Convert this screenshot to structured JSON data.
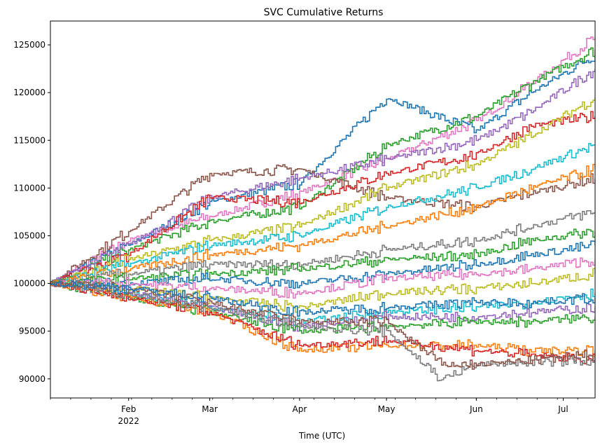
{
  "chart_data": {
    "type": "line",
    "title": "SVC Cumulative Returns",
    "xlabel": "Time (UTC)",
    "ylabel": "",
    "xlim": [
      "2022-01-05",
      "2022-07-12"
    ],
    "ylim": [
      88000,
      127500
    ],
    "x_ticks": [
      {
        "date": "2022-02-01",
        "label": "Feb",
        "sublabel": "2022"
      },
      {
        "date": "2022-03-01",
        "label": "Mar",
        "sublabel": ""
      },
      {
        "date": "2022-04-01",
        "label": "Apr",
        "sublabel": ""
      },
      {
        "date": "2022-05-01",
        "label": "May",
        "sublabel": ""
      },
      {
        "date": "2022-06-01",
        "label": "Jun",
        "sublabel": ""
      },
      {
        "date": "2022-07-01",
        "label": "Jul",
        "sublabel": ""
      }
    ],
    "y_ticks": [
      90000,
      95000,
      100000,
      105000,
      110000,
      115000,
      120000,
      125000
    ],
    "y_tick_labels": [
      "90000",
      "95000",
      "100000",
      "105000",
      "110000",
      "115000",
      "120000",
      "125000"
    ],
    "grid": false,
    "legend": "none",
    "palette": [
      "#1f77b4",
      "#ff7f0e",
      "#2ca02c",
      "#d62728",
      "#9467bd",
      "#8c564b",
      "#e377c2",
      "#7f7f7f",
      "#bcbd22",
      "#17becf"
    ],
    "series": [
      {
        "color": "#e377c2",
        "x": [
          "2022-01-05",
          "2022-02-01",
          "2022-03-01",
          "2022-04-01",
          "2022-05-01",
          "2022-06-01",
          "2022-06-20",
          "2022-07-12"
        ],
        "y": [
          100000,
          104500,
          107000,
          109500,
          113000,
          117000,
          121000,
          125800
        ]
      },
      {
        "color": "#1f77b4",
        "x": [
          "2022-01-05",
          "2022-02-01",
          "2022-03-01",
          "2022-04-01",
          "2022-05-01",
          "2022-06-01",
          "2022-06-20",
          "2022-07-12"
        ],
        "y": [
          100000,
          104000,
          108500,
          110500,
          119500,
          116000,
          120000,
          124000
        ]
      },
      {
        "color": "#2ca02c",
        "x": [
          "2022-01-05",
          "2022-02-01",
          "2022-03-01",
          "2022-04-01",
          "2022-05-01",
          "2022-06-01",
          "2022-06-20",
          "2022-07-12"
        ],
        "y": [
          100000,
          103500,
          106500,
          108000,
          114500,
          117500,
          121000,
          124500
        ]
      },
      {
        "color": "#8c564b",
        "x": [
          "2022-01-05",
          "2022-02-01",
          "2022-03-01",
          "2022-04-01",
          "2022-05-01",
          "2022-06-01",
          "2022-06-20",
          "2022-07-12"
        ],
        "y": [
          100000,
          105500,
          111500,
          112000,
          109000,
          108000,
          109500,
          111000
        ]
      },
      {
        "color": "#9467bd",
        "x": [
          "2022-01-05",
          "2022-02-01",
          "2022-03-01",
          "2022-04-01",
          "2022-05-01",
          "2022-06-01",
          "2022-06-20",
          "2022-07-12"
        ],
        "y": [
          100000,
          104000,
          109000,
          111000,
          113000,
          115000,
          118000,
          122500
        ]
      },
      {
        "color": "#d62728",
        "x": [
          "2022-01-05",
          "2022-02-01",
          "2022-03-01",
          "2022-04-01",
          "2022-05-01",
          "2022-06-01",
          "2022-06-20",
          "2022-07-12"
        ],
        "y": [
          100000,
          103000,
          109000,
          108500,
          111500,
          113500,
          116500,
          117500
        ]
      },
      {
        "color": "#bcbd22",
        "x": [
          "2022-01-05",
          "2022-02-01",
          "2022-03-01",
          "2022-04-01",
          "2022-05-01",
          "2022-06-01",
          "2022-06-20",
          "2022-07-12"
        ],
        "y": [
          100000,
          102500,
          104500,
          106000,
          110000,
          112500,
          115500,
          119500
        ]
      },
      {
        "color": "#17becf",
        "x": [
          "2022-01-05",
          "2022-02-01",
          "2022-03-01",
          "2022-04-01",
          "2022-05-01",
          "2022-06-01",
          "2022-06-20",
          "2022-07-12"
        ],
        "y": [
          100000,
          102000,
          104000,
          105000,
          108000,
          110000,
          112000,
          114500
        ]
      },
      {
        "color": "#ff7f0e",
        "x": [
          "2022-01-05",
          "2022-02-01",
          "2022-03-01",
          "2022-04-01",
          "2022-05-01",
          "2022-06-01",
          "2022-06-20",
          "2022-07-12"
        ],
        "y": [
          100000,
          101500,
          103000,
          104000,
          106000,
          108000,
          110000,
          112000
        ]
      },
      {
        "color": "#7f7f7f",
        "x": [
          "2022-01-05",
          "2022-02-01",
          "2022-03-01",
          "2022-04-01",
          "2022-05-01",
          "2022-06-01",
          "2022-06-20",
          "2022-07-12"
        ],
        "y": [
          100000,
          101000,
          102000,
          102000,
          103500,
          104500,
          106000,
          107500
        ]
      },
      {
        "color": "#2ca02c",
        "x": [
          "2022-01-05",
          "2022-02-01",
          "2022-03-01",
          "2022-04-01",
          "2022-05-01",
          "2022-06-01",
          "2022-06-20",
          "2022-07-12"
        ],
        "y": [
          100000,
          100500,
          101000,
          101500,
          102500,
          103000,
          104500,
          105500
        ]
      },
      {
        "color": "#1f77b4",
        "x": [
          "2022-01-05",
          "2022-02-01",
          "2022-03-01",
          "2022-04-01",
          "2022-05-01",
          "2022-06-01",
          "2022-06-20",
          "2022-07-12"
        ],
        "y": [
          100000,
          100000,
          100500,
          100000,
          101000,
          102000,
          103000,
          104000
        ]
      },
      {
        "color": "#e377c2",
        "x": [
          "2022-01-05",
          "2022-02-01",
          "2022-03-01",
          "2022-04-01",
          "2022-05-01",
          "2022-06-01",
          "2022-06-20",
          "2022-07-12"
        ],
        "y": [
          100000,
          100000,
          99500,
          99000,
          100500,
          101000,
          101500,
          102500
        ]
      },
      {
        "color": "#bcbd22",
        "x": [
          "2022-01-05",
          "2022-02-01",
          "2022-03-01",
          "2022-04-01",
          "2022-05-01",
          "2022-06-01",
          "2022-06-20",
          "2022-07-12"
        ],
        "y": [
          100000,
          99500,
          98500,
          97500,
          99000,
          99500,
          100000,
          101000
        ]
      },
      {
        "color": "#17becf",
        "x": [
          "2022-01-05",
          "2022-02-01",
          "2022-03-01",
          "2022-04-01",
          "2022-05-01",
          "2022-06-01",
          "2022-06-20",
          "2022-07-12"
        ],
        "y": [
          100000,
          99000,
          97500,
          96000,
          97000,
          97500,
          98000,
          99000
        ]
      },
      {
        "color": "#9467bd",
        "x": [
          "2022-01-05",
          "2022-02-01",
          "2022-03-01",
          "2022-04-01",
          "2022-05-01",
          "2022-06-01",
          "2022-06-20",
          "2022-07-12"
        ],
        "y": [
          100000,
          99000,
          97500,
          95500,
          96500,
          96500,
          97000,
          97500
        ]
      },
      {
        "color": "#2ca02c",
        "x": [
          "2022-01-05",
          "2022-02-01",
          "2022-03-01",
          "2022-04-01",
          "2022-05-01",
          "2022-06-01",
          "2022-06-20",
          "2022-07-12"
        ],
        "y": [
          100000,
          98500,
          97000,
          95000,
          95500,
          96000,
          96000,
          96500
        ]
      },
      {
        "color": "#ff7f0e",
        "x": [
          "2022-01-05",
          "2022-02-01",
          "2022-03-01",
          "2022-04-01",
          "2022-05-01",
          "2022-06-01",
          "2022-06-20",
          "2022-07-12"
        ],
        "y": [
          100000,
          98500,
          97000,
          93000,
          93500,
          93500,
          93000,
          93000
        ]
      },
      {
        "color": "#d62728",
        "x": [
          "2022-01-05",
          "2022-02-01",
          "2022-03-01",
          "2022-04-01",
          "2022-05-01",
          "2022-06-01",
          "2022-06-20",
          "2022-07-12"
        ],
        "y": [
          100000,
          98500,
          97000,
          93500,
          94000,
          93000,
          92500,
          92000
        ]
      },
      {
        "color": "#7f7f7f",
        "x": [
          "2022-01-05",
          "2022-02-01",
          "2022-03-01",
          "2022-04-01",
          "2022-05-01",
          "2022-05-20",
          "2022-06-01",
          "2022-07-12"
        ],
        "y": [
          100000,
          99000,
          97500,
          95500,
          95000,
          90000,
          91500,
          92000
        ]
      },
      {
        "color": "#8c564b",
        "x": [
          "2022-01-05",
          "2022-02-01",
          "2022-03-01",
          "2022-04-01",
          "2022-05-01",
          "2022-05-20",
          "2022-06-01",
          "2022-07-12"
        ],
        "y": [
          100000,
          99500,
          98000,
          96000,
          96000,
          91500,
          91500,
          92500
        ]
      },
      {
        "color": "#1f77b4",
        "x": [
          "2022-01-05",
          "2022-02-01",
          "2022-03-01",
          "2022-04-01",
          "2022-05-01",
          "2022-06-01",
          "2022-06-20",
          "2022-07-12"
        ],
        "y": [
          100000,
          99500,
          98500,
          97000,
          97500,
          98000,
          98000,
          98500
        ]
      }
    ]
  }
}
